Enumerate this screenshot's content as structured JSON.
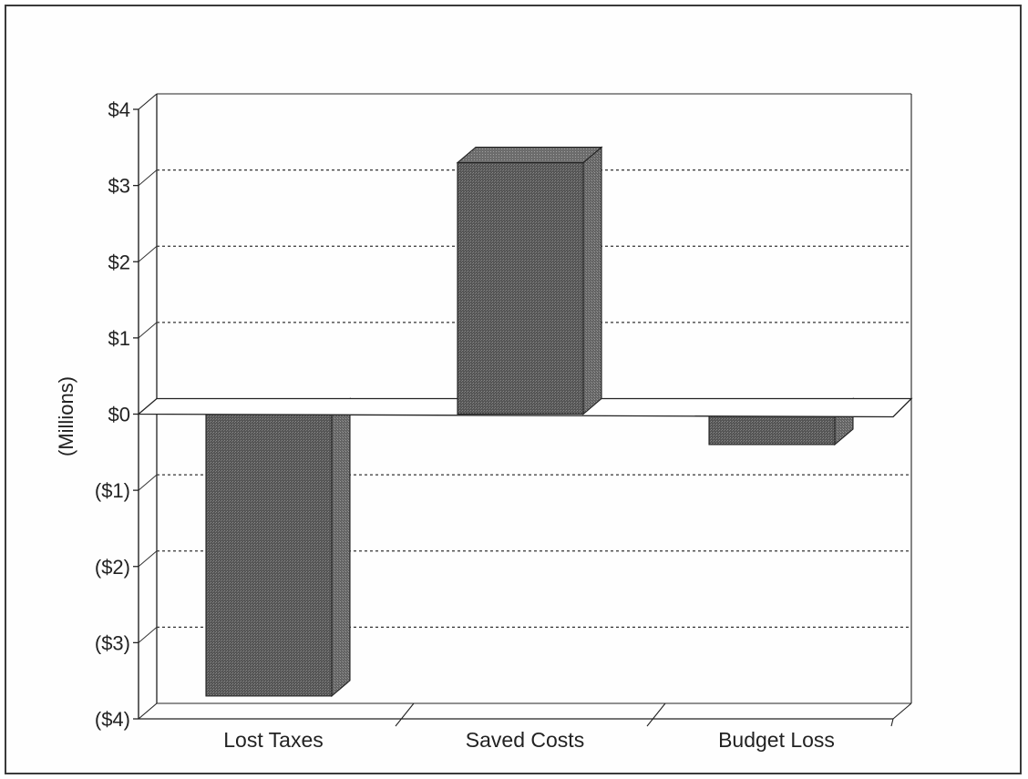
{
  "chart_data": {
    "type": "bar",
    "categories": [
      "Lost Taxes",
      "Saved Costs",
      "Budget Loss"
    ],
    "values": [
      -3.7,
      3.3,
      -0.4
    ],
    "title": "",
    "xlabel": "",
    "ylabel": "(Millions)",
    "ylim": [
      -4,
      4
    ],
    "yticks": [
      4,
      3,
      2,
      1,
      0,
      -1,
      -2,
      -3,
      -4
    ],
    "ytick_labels": [
      "$4",
      "$3",
      "$2",
      "$1",
      "$0",
      "($1)",
      "($2)",
      "($3)",
      "($4)"
    ],
    "grid": "horizontal dashed",
    "legend": "none",
    "style": "3d",
    "colors": {
      "bar": "#5a5a5a",
      "bar_side": "#6a6a6a",
      "bar_top": "#707070",
      "grid": "#333333",
      "axis": "#222222"
    }
  }
}
